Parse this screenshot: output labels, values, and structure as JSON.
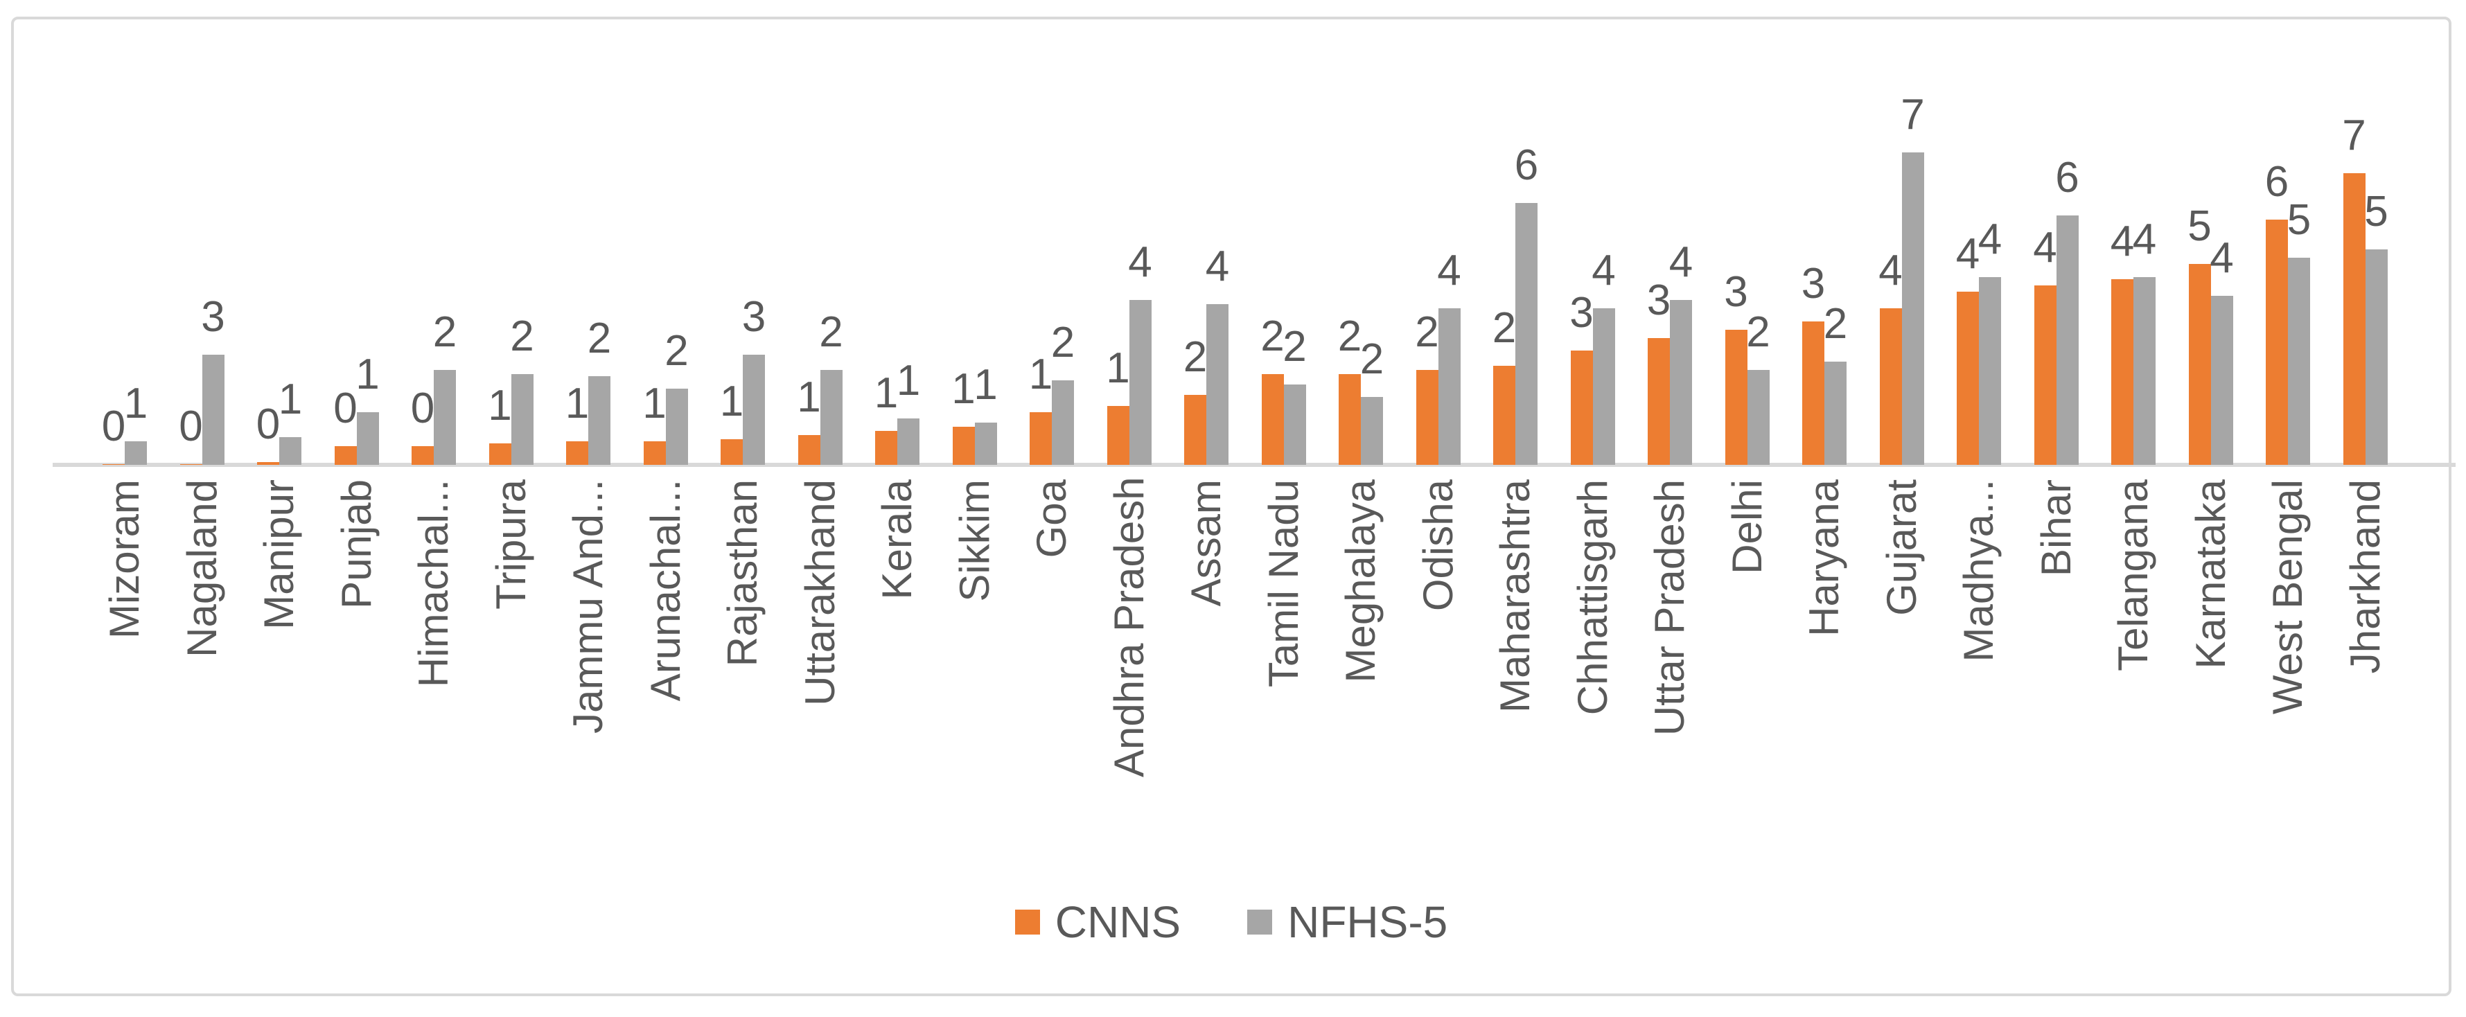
{
  "chart_data": {
    "type": "bar",
    "title": "",
    "xlabel": "",
    "ylabel": "",
    "grid": false,
    "y_axis_visible": false,
    "ylim": [
      0,
      7.5
    ],
    "legend_position": "bottom",
    "categories": [
      "Mizoram",
      "Nagaland",
      "Manipur",
      "Punjab",
      "Himachal...",
      "Tripura",
      "Jammu And...",
      "Arunachal...",
      "Rajasthan",
      "Uttarakhand",
      "Kerala",
      "Sikkim",
      "Goa",
      "Andhra Pradesh",
      "Assam",
      "Tamil Nadu",
      "Meghalaya",
      "Odisha",
      "Maharashtra",
      "Chhattisgarh",
      "Uttar Pradesh",
      "Delhi",
      "Haryana",
      "Gujarat",
      "Madhya...",
      "Bihar",
      "Telangana",
      "Karnataka",
      "West Bengal",
      "Jharkhand"
    ],
    "series": [
      {
        "name": "CNNS",
        "color": "#ED7D31",
        "data_labels": [
          0,
          0,
          0,
          0,
          0,
          1,
          1,
          1,
          1,
          1,
          1,
          1,
          1,
          1,
          2,
          2,
          2,
          2,
          2,
          3,
          3,
          3,
          3,
          4,
          4,
          4,
          4,
          5,
          6,
          7
        ],
        "values_est": [
          0.02,
          0.02,
          0.06,
          0.45,
          0.45,
          0.5,
          0.55,
          0.55,
          0.6,
          0.7,
          0.8,
          0.9,
          1.25,
          1.4,
          1.65,
          2.15,
          2.15,
          2.25,
          2.35,
          2.7,
          3.0,
          3.2,
          3.4,
          3.7,
          4.1,
          4.25,
          4.4,
          4.75,
          5.8,
          6.9
        ]
      },
      {
        "name": "NFHS-5",
        "color": "#A6A6A6",
        "data_labels": [
          1,
          3,
          1,
          1,
          2,
          2,
          2,
          2,
          3,
          2,
          1,
          1,
          2,
          4,
          4,
          2,
          2,
          4,
          6,
          4,
          4,
          2,
          2,
          7,
          4,
          6,
          4,
          4,
          5,
          5
        ],
        "values_est": [
          0.55,
          2.6,
          0.65,
          1.25,
          2.25,
          2.15,
          2.1,
          1.8,
          2.6,
          2.25,
          1.1,
          1.0,
          2.0,
          3.9,
          3.8,
          1.9,
          1.6,
          3.7,
          6.2,
          3.7,
          3.9,
          2.25,
          2.45,
          7.4,
          4.45,
          5.9,
          4.45,
          4.0,
          4.9,
          5.1
        ]
      }
    ]
  },
  "legend": {
    "items": [
      {
        "label": "CNNS",
        "color": "#ED7D31"
      },
      {
        "label": "NFHS-5",
        "color": "#A6A6A6"
      }
    ]
  },
  "style": {
    "bar_color_cnns": "#ED7D31",
    "bar_color_nfhs5": "#A6A6A6",
    "label_text_color": "#595959",
    "axis_line_color": "#D9D9D9",
    "frame_border_color": "#D9D9D9",
    "background": "#FFFFFF"
  }
}
